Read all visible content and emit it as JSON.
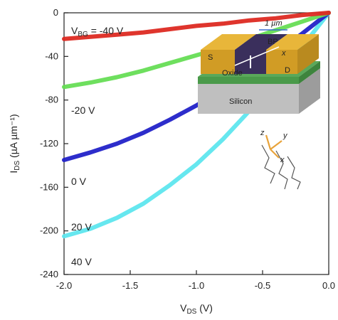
{
  "chart_data": {
    "type": "line",
    "xlabel_main": "V",
    "xlabel_sub": "DS",
    "xlabel_unit": " (V)",
    "ylabel_main": "I",
    "ylabel_sub": "DS",
    "ylabel_unit": " (µA µm⁻¹)",
    "xlim": [
      -2.0,
      0.0
    ],
    "ylim": [
      -240,
      0
    ],
    "x_ticks": [
      -2.0,
      -1.5,
      -1.0,
      -0.5,
      0.0
    ],
    "x_tick_labels": [
      "-2.0",
      "-1.5",
      "-1.0",
      "-0.5",
      "0.0"
    ],
    "y_ticks": [
      -240,
      -200,
      -160,
      -120,
      -80,
      -40,
      0
    ],
    "y_tick_labels": [
      "-240",
      "-200",
      "-160",
      "-120",
      "-80",
      "-40",
      "0"
    ],
    "legend_title_main": "V",
    "legend_title_sub": "BG",
    "series": [
      {
        "name": "= -40 V",
        "color": "#5ee6ee",
        "x": [
          -2.0,
          -1.8,
          -1.6,
          -1.4,
          -1.2,
          -1.0,
          -0.8,
          -0.6,
          -0.4,
          -0.2,
          0.0
        ],
        "y": [
          -205,
          -198,
          -188,
          -175,
          -158,
          -139,
          -116,
          -90,
          -61,
          -31,
          0
        ]
      },
      {
        "name": "-20 V",
        "color": "#2222c8",
        "x": [
          -2.0,
          -1.8,
          -1.6,
          -1.4,
          -1.2,
          -1.0,
          -0.8,
          -0.6,
          -0.4,
          -0.2,
          0.0
        ],
        "y": [
          -135,
          -128,
          -120,
          -110,
          -98,
          -85,
          -70,
          -54,
          -37,
          -19,
          0
        ]
      },
      {
        "name": "0 V",
        "color": "#66dd55",
        "x": [
          -2.0,
          -1.8,
          -1.6,
          -1.4,
          -1.2,
          -1.0,
          -0.8,
          -0.6,
          -0.4,
          -0.2,
          0.0
        ],
        "y": [
          -68,
          -64,
          -59,
          -53,
          -46,
          -39,
          -32,
          -24,
          -16,
          -8,
          0
        ]
      },
      {
        "name": "20 V",
        "color": "#dd2a22",
        "x": [
          -2.0,
          -1.8,
          -1.6,
          -1.4,
          -1.2,
          -1.0,
          -0.8,
          -0.6,
          -0.4,
          -0.2,
          0.0
        ],
        "y": [
          -24,
          -22,
          -20,
          -18,
          -15,
          -12,
          -10,
          -7,
          -5,
          -2,
          0
        ]
      },
      {
        "name": "40 V",
        "color": "#dd2a22",
        "x": [],
        "y": []
      }
    ],
    "inset": {
      "dim_label": "1 µm",
      "material": "BP",
      "source": "S",
      "drain": "D",
      "oxide": "Oxide",
      "substrate": "Silicon",
      "axis_x": "x",
      "crystal_axes": [
        "z",
        "y",
        "x"
      ]
    }
  }
}
